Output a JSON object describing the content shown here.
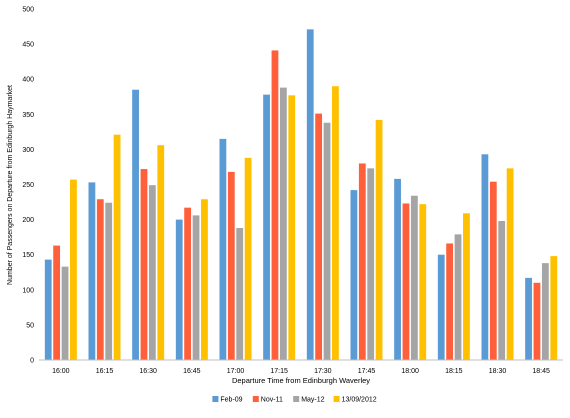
{
  "chart_data": {
    "type": "bar",
    "title": "",
    "xlabel": "Departure Time from Edinburgh Waverley",
    "ylabel": "Number of Passengers on Departure from Edinburgh Haymarket",
    "ylim": [
      0,
      500
    ],
    "yticks": [
      0,
      50,
      100,
      150,
      200,
      250,
      300,
      350,
      400,
      450,
      500
    ],
    "grid": false,
    "legend_position": "bottom",
    "categories": [
      "16:00",
      "16:15",
      "16:30",
      "16:45",
      "17:00",
      "17:15",
      "17:30",
      "17:45",
      "18:00",
      "18:15",
      "18:30",
      "18:45"
    ],
    "series": [
      {
        "name": "Feb-09",
        "color": "#5B9BD5",
        "values": [
          143,
          253,
          385,
          200,
          315,
          378,
          471,
          242,
          258,
          150,
          293,
          117
        ]
      },
      {
        "name": "Nov-11",
        "color": "#FF5F3A",
        "values": [
          163,
          229,
          272,
          217,
          268,
          441,
          351,
          280,
          223,
          166,
          254,
          110
        ]
      },
      {
        "name": "May-12",
        "color": "#A5A5A5",
        "values": [
          133,
          224,
          249,
          206,
          188,
          388,
          338,
          273,
          234,
          179,
          198,
          138
        ]
      },
      {
        "name": "13/09/2012",
        "color": "#FFC000",
        "values": [
          257,
          321,
          306,
          229,
          288,
          377,
          390,
          342,
          222,
          209,
          273,
          148
        ]
      }
    ]
  }
}
